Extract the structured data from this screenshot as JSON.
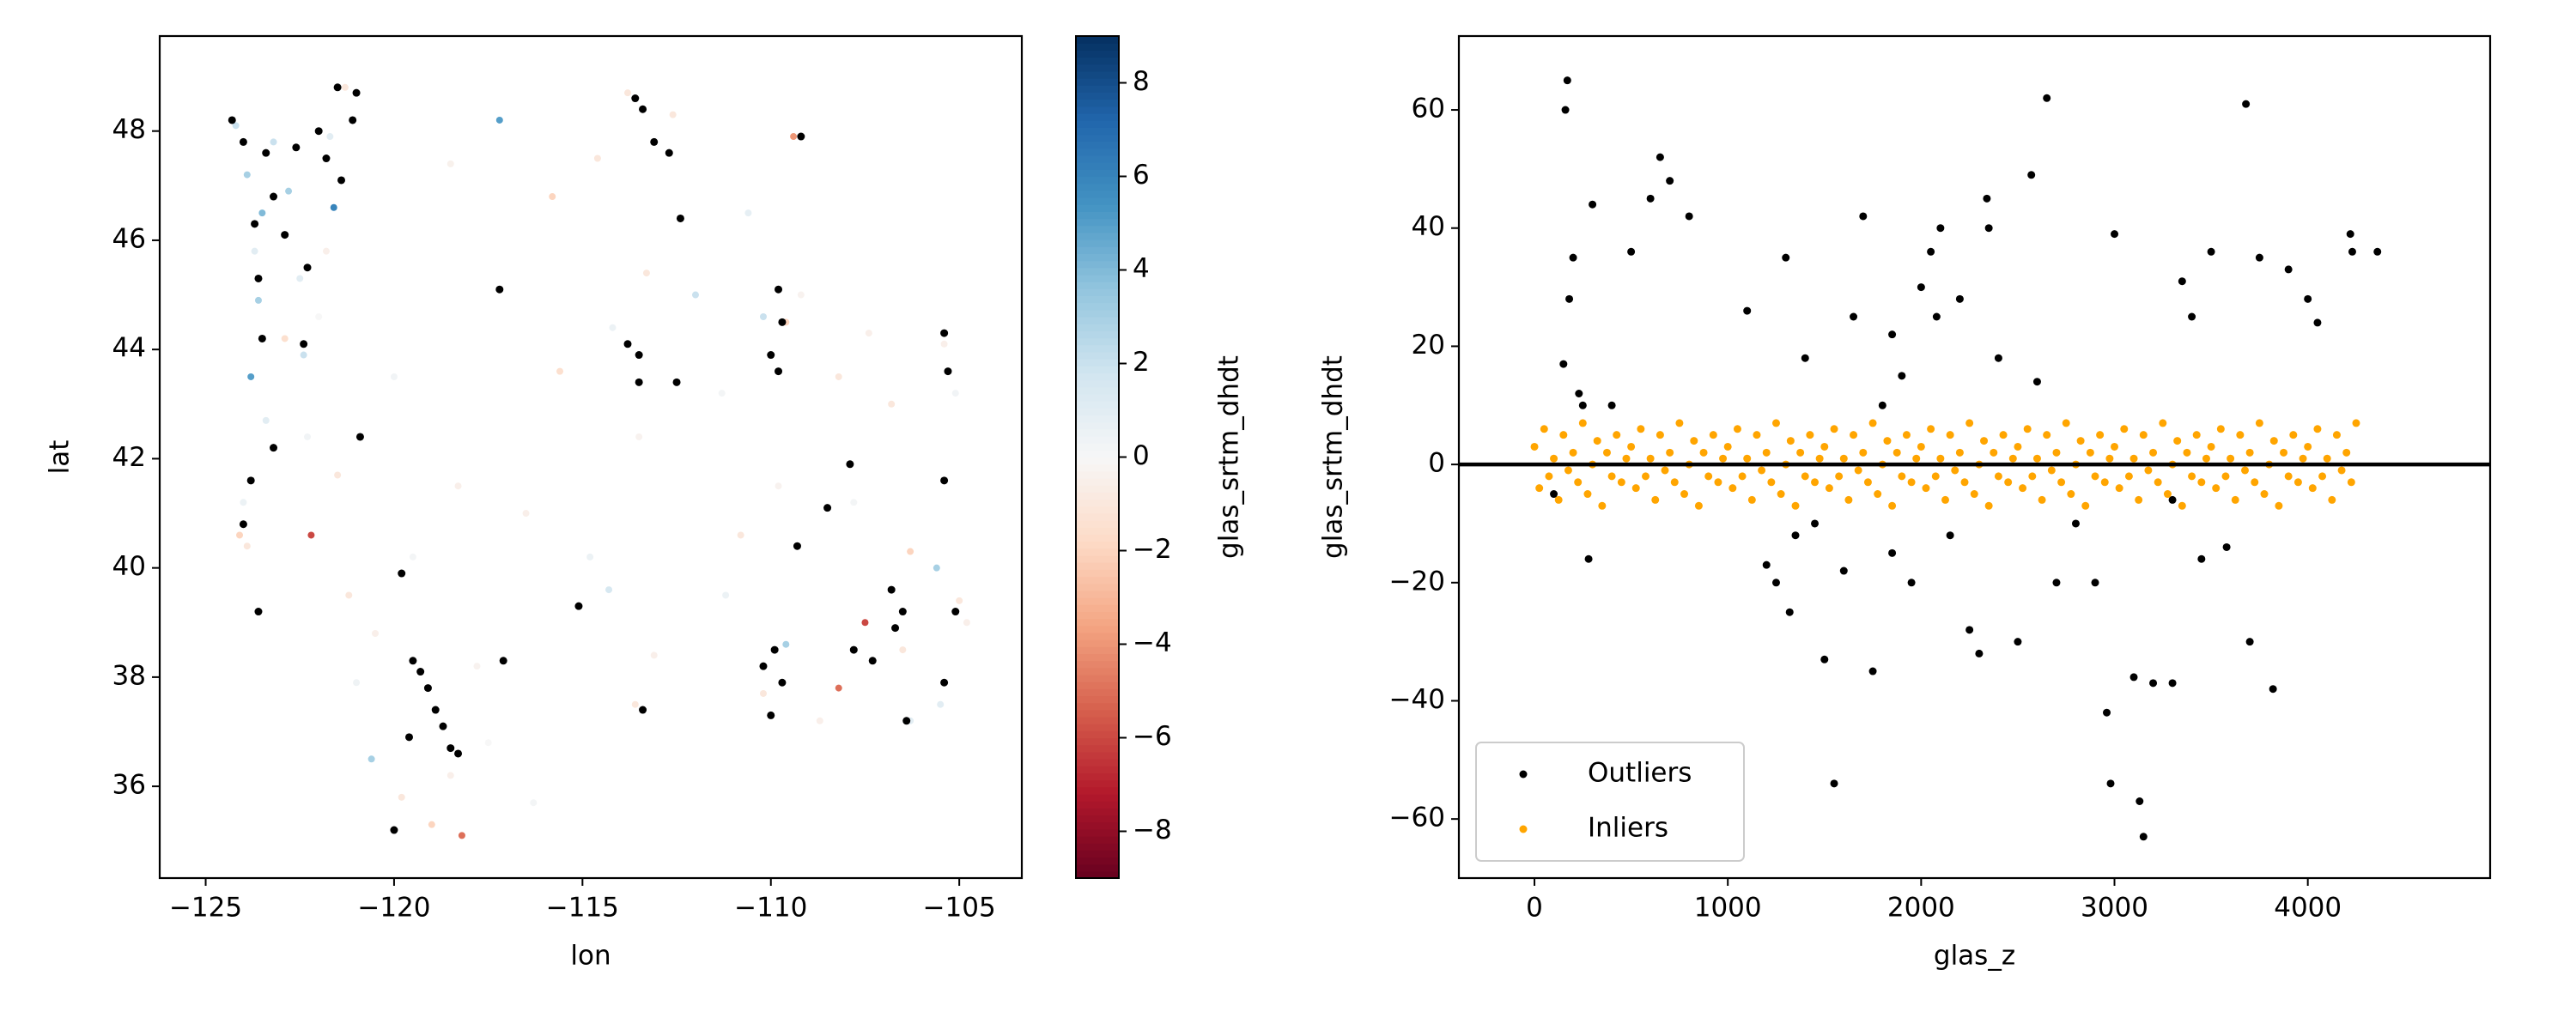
{
  "chart_data": [
    {
      "type": "scatter",
      "xlabel": "lon",
      "ylabel": "lat",
      "xlim": [
        -126.22,
        -103.34
      ],
      "ylim": [
        34.32,
        49.74
      ],
      "xticks": [
        {
          "value": -125,
          "label": "−125"
        },
        {
          "value": -120,
          "label": "−120"
        },
        {
          "value": -115,
          "label": "−115"
        },
        {
          "value": -110,
          "label": "−110"
        },
        {
          "value": -105,
          "label": "−105"
        }
      ],
      "yticks": [
        36,
        38,
        40,
        42,
        44,
        46,
        48
      ],
      "colormap": "RdBu",
      "colorbar": {
        "label": "glas_srtm_dhdt",
        "lim": [
          -9,
          9
        ],
        "ticks": [
          {
            "value": -8,
            "label": "−8"
          },
          {
            "value": -6,
            "label": "−6"
          },
          {
            "value": -4,
            "label": "−4"
          },
          {
            "value": -2,
            "label": "−2"
          },
          0,
          2,
          4,
          6,
          8
        ]
      },
      "series": [
        {
          "x": [
            -124.2,
            -123.9,
            -123.5,
            -123.7,
            -123.6,
            -123.8,
            -123.4,
            -124,
            -123.9,
            -124.1,
            -123.2,
            -122.8,
            -122.5,
            -122.4,
            -121.7,
            -121.6,
            -122,
            -121.3,
            -121.8,
            -122.9,
            -122.3,
            -121.5,
            -122.2,
            -121.2,
            -120.5,
            -121,
            -120.6,
            -119.8,
            -119,
            -118.2,
            -118.5,
            -117.5,
            -119.5,
            -118.3,
            -120,
            -117.2,
            -118.5,
            -115.8,
            -114.6,
            -113.8,
            -112.6,
            -114.2,
            -113.3,
            -112,
            -115.6,
            -113.5,
            -114.8,
            -114.3,
            -113.6,
            -113.1,
            -111.3,
            -110.2,
            -109.6,
            -109.2,
            -109.4,
            -108.2,
            -107.4,
            -106.8,
            -105.4,
            -105.1,
            -109.8,
            -107.8,
            -106.3,
            -105.6,
            -107.5,
            -106.5,
            -105.5,
            -105,
            -106.3,
            -109.6,
            -108.7,
            -110.2,
            -108.2,
            -104.8,
            -110.8,
            -111.2,
            -116.3,
            -117.8,
            -116.5,
            -110.6
          ],
          "y": [
            48.1,
            47.2,
            46.5,
            45.8,
            44.9,
            43.5,
            42.7,
            41.2,
            40.4,
            40.6,
            47.8,
            46.9,
            45.3,
            43.9,
            47.9,
            46.6,
            44.6,
            48.8,
            45.8,
            44.2,
            42.4,
            41.7,
            40.6,
            39.5,
            38.8,
            37.9,
            36.5,
            35.8,
            35.3,
            35.1,
            36.2,
            36.8,
            40.2,
            41.5,
            43.5,
            48.2,
            47.4,
            46.8,
            47.5,
            48.7,
            48.3,
            44.4,
            45.4,
            45,
            43.6,
            42.4,
            40.2,
            39.6,
            37.5,
            38.4,
            43.2,
            44.6,
            44.5,
            45,
            47.9,
            43.5,
            44.3,
            43,
            44.1,
            43.2,
            41.5,
            41.2,
            40.3,
            40,
            39,
            38.5,
            37.5,
            39.4,
            37.2,
            38.6,
            37.2,
            37.7,
            37.8,
            39,
            40.6,
            39.5,
            35.7,
            38.2,
            41,
            46.5
          ],
          "c": [
            2,
            3,
            4,
            1,
            3,
            5,
            1,
            0.5,
            -1,
            -2,
            2,
            3,
            1,
            2,
            1,
            6,
            0,
            -1,
            -0.5,
            -1.5,
            0.3,
            -1,
            -6,
            -1,
            -0.5,
            0.4,
            3,
            -1,
            -2,
            -5,
            -0.5,
            0,
            0.2,
            -0.5,
            0.3,
            5,
            -0.4,
            -2,
            -1,
            -1,
            -1,
            0.5,
            -1,
            2,
            -1.5,
            -0.3,
            0.5,
            1.5,
            -1,
            -0.5,
            0.2,
            2,
            -2,
            -0.3,
            -4,
            -1,
            -0.5,
            -1,
            -0.5,
            0.3,
            -0.3,
            0.2,
            -2,
            3,
            -6,
            -1,
            1,
            -1,
            1,
            3,
            -0.5,
            -1,
            -5,
            -0.5,
            -1,
            0.5,
            0.2,
            -0.3,
            -0.5,
            0.8
          ]
        },
        {
          "color": "#000000",
          "x": [
            -124.3,
            -124,
            -123.4,
            -123.7,
            -123.2,
            -123.6,
            -123.5,
            -122.9,
            -122.6,
            -122,
            -122.3,
            -122.4,
            -121.5,
            -121,
            -121.1,
            -121.8,
            -121.4,
            -123.2,
            -123.8,
            -124,
            -123.6,
            -120.9,
            -119.5,
            -119.3,
            -119.1,
            -118.9,
            -118.7,
            -118.5,
            -118.3,
            -119.8,
            -120,
            -119.6,
            -117.2,
            -117.1,
            -115.1,
            -113.6,
            -113.4,
            -113.1,
            -112.7,
            -112.4,
            -113.8,
            -113.5,
            -113.5,
            -113.4,
            -112.5,
            -109.8,
            -109.7,
            -110,
            -109.8,
            -109.2,
            -109.3,
            -108.5,
            -107.9,
            -105.4,
            -105.3,
            -110.2,
            -109.7,
            -110,
            -109.9,
            -106.8,
            -106.5,
            -106.7,
            -107.8,
            -107.3,
            -106.4,
            -105.4,
            -105.1,
            -105.4
          ],
          "y": [
            48.2,
            47.8,
            47.6,
            46.3,
            46.8,
            45.3,
            44.2,
            46.1,
            47.7,
            48,
            45.5,
            44.1,
            48.8,
            48.7,
            48.2,
            47.5,
            47.1,
            42.2,
            41.6,
            40.8,
            39.2,
            42.4,
            38.3,
            38.1,
            37.8,
            37.4,
            37.1,
            36.7,
            36.6,
            39.9,
            35.2,
            36.9,
            45.1,
            38.3,
            39.3,
            48.6,
            48.4,
            47.8,
            47.6,
            46.4,
            44.1,
            43.9,
            43.4,
            37.4,
            43.4,
            45.1,
            44.5,
            43.9,
            43.6,
            47.9,
            40.4,
            41.1,
            41.9,
            44.3,
            43.6,
            38.2,
            37.9,
            37.3,
            38.5,
            39.6,
            39.2,
            38.9,
            38.5,
            38.3,
            37.2,
            37.9,
            39.2,
            41.6
          ]
        }
      ]
    },
    {
      "type": "scatter",
      "xlabel": "glas_z",
      "ylabel": "glas_srtm_dhdt",
      "xlim": [
        -391,
        4943
      ],
      "ylim": [
        -70,
        72.5
      ],
      "xticks": [
        0,
        1000,
        2000,
        3000,
        4000
      ],
      "yticks": [
        {
          "value": -60,
          "label": "−60"
        },
        {
          "value": -40,
          "label": "−40"
        },
        {
          "value": -20,
          "label": "−20"
        },
        0,
        20,
        40,
        60
      ],
      "hline": 0,
      "legend": "lower left",
      "series": [
        {
          "name": "Outliers",
          "color": "#000000",
          "x": [
            170,
            160,
            300,
            200,
            180,
            500,
            600,
            650,
            700,
            800,
            150,
            230,
            250,
            280,
            100,
            400,
            1100,
            1250,
            1300,
            1320,
            1350,
            1400,
            1450,
            1550,
            1500,
            1600,
            1650,
            1700,
            1750,
            1800,
            1850,
            1900,
            1950,
            2000,
            2050,
            2080,
            2100,
            2150,
            2200,
            2250,
            2300,
            2340,
            2350,
            2400,
            2500,
            2570,
            2650,
            2700,
            2800,
            2900,
            2960,
            3000,
            2980,
            3100,
            3150,
            3130,
            3200,
            3300,
            3350,
            3400,
            3450,
            3500,
            3580,
            3680,
            3700,
            3750,
            3820,
            3900,
            4000,
            4050,
            4220,
            4230,
            4360,
            1850,
            2600,
            3300,
            1200
          ],
          "y": [
            65,
            60,
            44,
            35,
            28,
            36,
            45,
            52,
            48,
            42,
            17,
            12,
            10,
            -16,
            -5,
            10,
            26,
            -20,
            35,
            -25,
            -12,
            18,
            -10,
            -54,
            -33,
            -18,
            25,
            42,
            -35,
            10,
            22,
            15,
            -20,
            30,
            36,
            25,
            40,
            -12,
            28,
            -28,
            -32,
            45,
            40,
            18,
            -30,
            49,
            62,
            -20,
            -10,
            -20,
            -42,
            39,
            -54,
            -36,
            -63,
            -57,
            -37,
            -37,
            31,
            25,
            -16,
            36,
            -14,
            61,
            -30,
            35,
            -38,
            33,
            28,
            24,
            39,
            36,
            36,
            -15,
            14,
            -6,
            -17
          ]
        },
        {
          "name": "Inliers",
          "color": "#ffa500",
          "x": [
            0,
            25,
            50,
            75,
            100,
            125,
            150,
            175,
            200,
            225,
            250,
            275,
            300,
            325,
            350,
            375,
            400,
            425,
            450,
            475,
            500,
            525,
            550,
            575,
            600,
            625,
            650,
            675,
            700,
            725,
            750,
            775,
            800,
            825,
            850,
            875,
            900,
            925,
            950,
            975,
            1000,
            1025,
            1050,
            1075,
            1100,
            1125,
            1150,
            1175,
            1200,
            1225,
            1250,
            1275,
            1300,
            1325,
            1350,
            1375,
            1400,
            1425,
            1450,
            1475,
            1500,
            1525,
            1550,
            1575,
            1600,
            1625,
            1650,
            1675,
            1700,
            1725,
            1750,
            1775,
            1800,
            1825,
            1850,
            1875,
            1900,
            1925,
            1950,
            1975,
            2000,
            2025,
            2050,
            2075,
            2100,
            2125,
            2150,
            2175,
            2200,
            2225,
            2250,
            2275,
            2300,
            2325,
            2350,
            2375,
            2400,
            2425,
            2450,
            2475,
            2500,
            2525,
            2550,
            2575,
            2600,
            2625,
            2650,
            2675,
            2700,
            2725,
            2750,
            2775,
            2800,
            2825,
            2850,
            2875,
            2900,
            2925,
            2950,
            2975,
            3000,
            3025,
            3050,
            3075,
            3100,
            3125,
            3150,
            3175,
            3200,
            3225,
            3250,
            3275,
            3300,
            3325,
            3350,
            3375,
            3400,
            3425,
            3450,
            3475,
            3500,
            3525,
            3550,
            3575,
            3600,
            3625,
            3650,
            3675,
            3700,
            3725,
            3750,
            3775,
            3800,
            3825,
            3850,
            3875,
            3900,
            3925,
            3950,
            3975,
            4000,
            4025,
            4050,
            4075,
            4100,
            4125,
            4150,
            4175,
            4200,
            4225,
            4250
          ],
          "y": [
            3,
            -4,
            6,
            -2,
            1,
            -6,
            5,
            -1,
            2,
            -3,
            7,
            -5,
            0,
            4,
            -7,
            2,
            -2,
            5,
            -3,
            1,
            3,
            -4,
            6,
            -2,
            1,
            -6,
            5,
            -1,
            2,
            -3,
            7,
            -5,
            0,
            4,
            -7,
            2,
            -2,
            5,
            -3,
            1,
            3,
            -4,
            6,
            -2,
            1,
            -6,
            5,
            -1,
            2,
            -3,
            7,
            -5,
            0,
            4,
            -7,
            2,
            -2,
            5,
            -3,
            1,
            3,
            -4,
            6,
            -2,
            1,
            -6,
            5,
            -1,
            2,
            -3,
            7,
            -5,
            0,
            4,
            -7,
            2,
            -2,
            5,
            -3,
            1,
            3,
            -4,
            6,
            -2,
            1,
            -6,
            5,
            -1,
            2,
            -3,
            7,
            -5,
            0,
            4,
            -7,
            2,
            -2,
            5,
            -3,
            1,
            3,
            -4,
            6,
            -2,
            1,
            -6,
            5,
            -1,
            2,
            -3,
            7,
            -5,
            0,
            4,
            -7,
            2,
            -2,
            5,
            -3,
            1,
            3,
            -4,
            6,
            -2,
            1,
            -6,
            5,
            -1,
            2,
            -3,
            7,
            -5,
            0,
            4,
            -7,
            2,
            -2,
            5,
            -3,
            1,
            3,
            -4,
            6,
            -2,
            1,
            -6,
            5,
            -1,
            2,
            -3,
            7,
            -5,
            0,
            4,
            -7,
            2,
            -2,
            5,
            -3,
            1,
            3,
            -4,
            6,
            -2,
            1,
            -6,
            5,
            -1,
            2,
            -3,
            7
          ]
        }
      ]
    }
  ]
}
